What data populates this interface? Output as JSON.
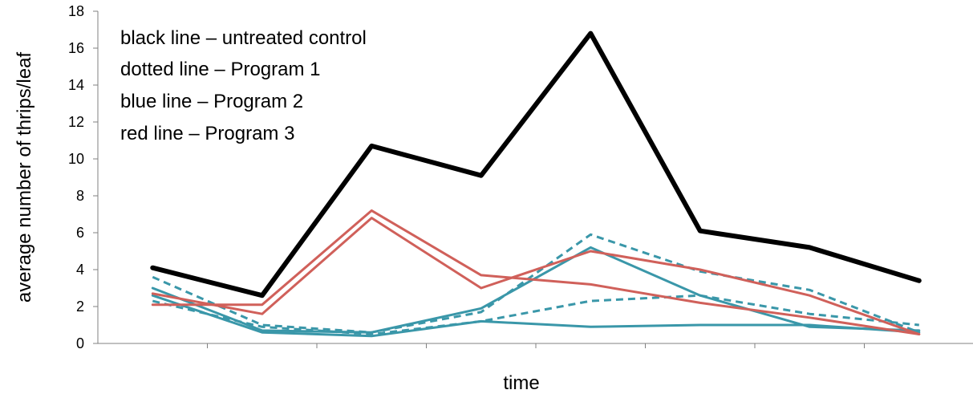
{
  "chart_data": {
    "type": "line",
    "title": "",
    "xlabel": "time",
    "ylabel": "average number of thrips/leaf",
    "ylim": [
      0,
      18
    ],
    "yticks": [
      "0",
      "2",
      "4",
      "6",
      "8",
      "10",
      "12",
      "14",
      "16",
      "18"
    ],
    "x": [
      1,
      2,
      3,
      4,
      5,
      6,
      7,
      8
    ],
    "annotations": [
      "black line – untreated control",
      "dotted line – Program 1",
      "blue line – Program 2",
      "red line – Program 3"
    ],
    "series": [
      {
        "color": "#000000",
        "style": "solid",
        "values": [
          4.1,
          2.6,
          10.7,
          9.1,
          16.8,
          6.1,
          5.2,
          3.4
        ]
      },
      {
        "color": "#3a97a9",
        "style": "dashed",
        "values": [
          3.6,
          1.0,
          0.6,
          1.7,
          5.9,
          3.9,
          2.9,
          0.6
        ]
      },
      {
        "color": "#3a97a9",
        "style": "dashed",
        "values": [
          2.3,
          0.9,
          0.5,
          1.2,
          2.3,
          2.6,
          1.6,
          1.0
        ]
      },
      {
        "color": "#3a97a9",
        "style": "solid",
        "values": [
          3.0,
          0.7,
          0.6,
          1.9,
          5.2,
          2.6,
          0.9,
          0.7
        ]
      },
      {
        "color": "#3a97a9",
        "style": "solid",
        "values": [
          2.6,
          0.6,
          0.4,
          1.2,
          0.9,
          1.0,
          1.0,
          0.6
        ]
      },
      {
        "color": "#d0605a",
        "style": "solid",
        "values": [
          2.1,
          2.1,
          7.2,
          3.7,
          3.2,
          2.2,
          1.4,
          0.5
        ]
      },
      {
        "color": "#d0605a",
        "style": "solid",
        "values": [
          2.7,
          1.6,
          6.8,
          3.0,
          5.0,
          4.0,
          2.6,
          0.5
        ]
      }
    ]
  }
}
